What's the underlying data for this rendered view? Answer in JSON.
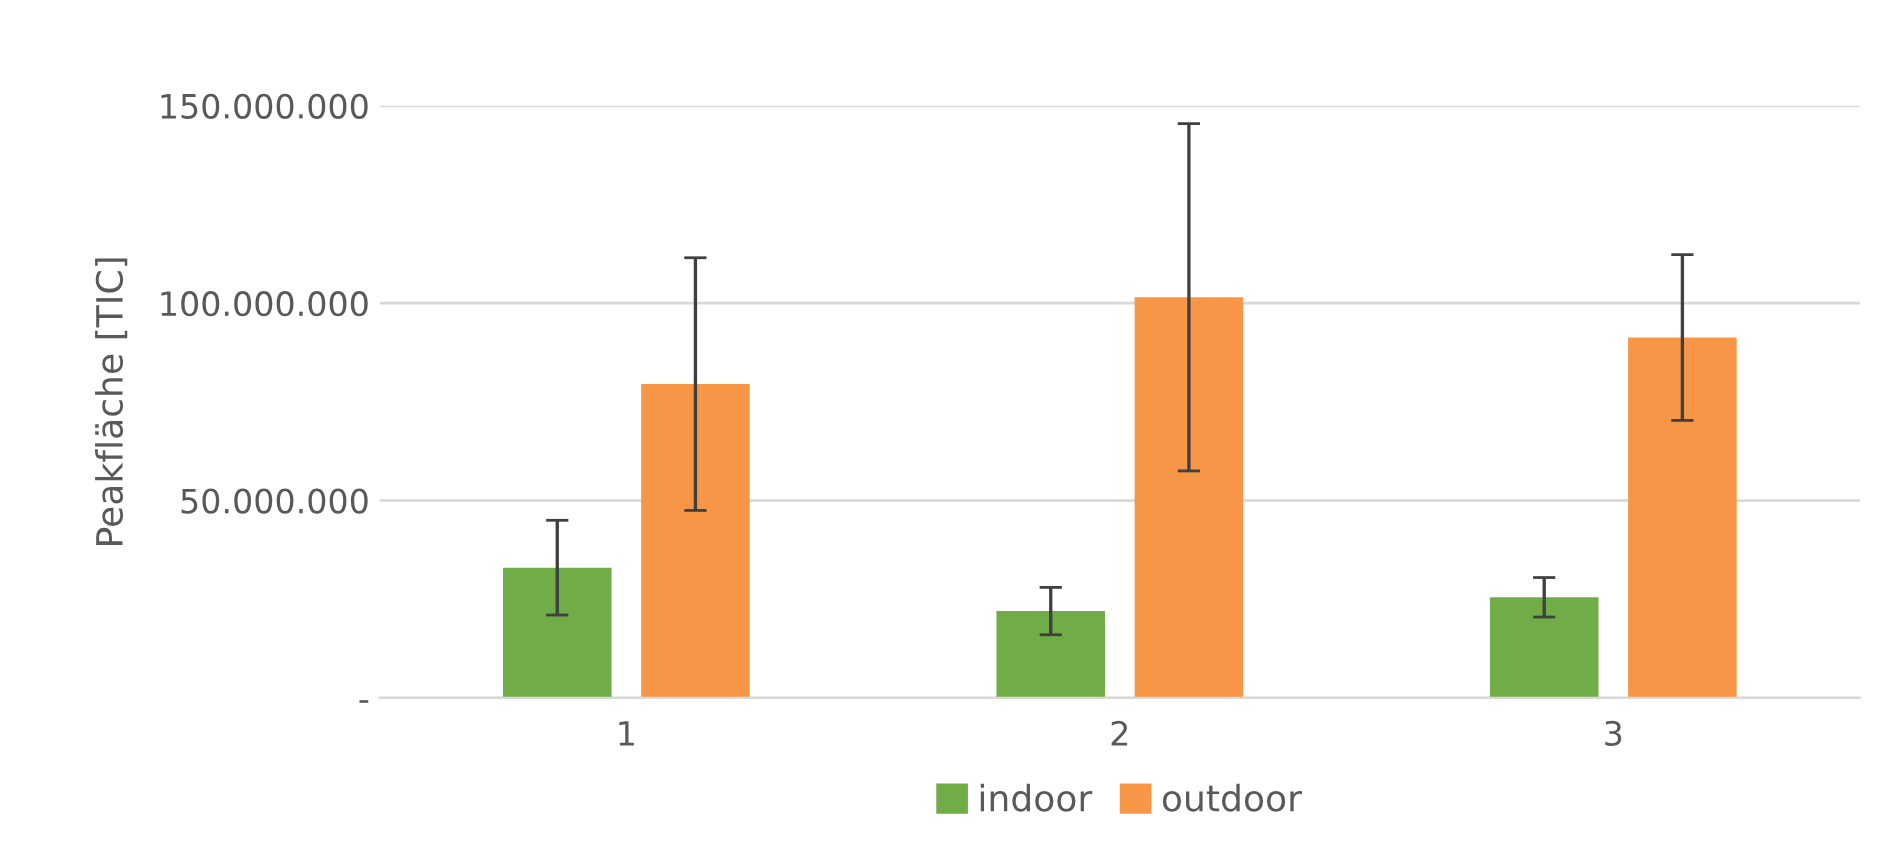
{
  "chart_data": {
    "type": "bar",
    "ylabel": "Peakfläche [TIC]",
    "categories": [
      "1",
      "2",
      "3"
    ],
    "series": [
      {
        "name": "indoor",
        "color": "#70ad47",
        "values": [
          33000000,
          22000000,
          25500000
        ],
        "errors": [
          12000000,
          6000000,
          5000000
        ]
      },
      {
        "name": "outdoor",
        "color": "#f79646",
        "values": [
          79500000,
          101500000,
          91300000
        ],
        "errors": [
          32000000,
          44000000,
          21000000
        ]
      }
    ],
    "ylim": [
      0,
      150000000
    ],
    "yticks": [
      {
        "value": 0,
        "label": "-"
      },
      {
        "value": 50000000,
        "label": "50.000.000"
      },
      {
        "value": 100000000,
        "label": "100.000.000"
      },
      {
        "value": 150000000,
        "label": "150.000.000"
      }
    ],
    "grid": "y",
    "legend": "bottom"
  }
}
